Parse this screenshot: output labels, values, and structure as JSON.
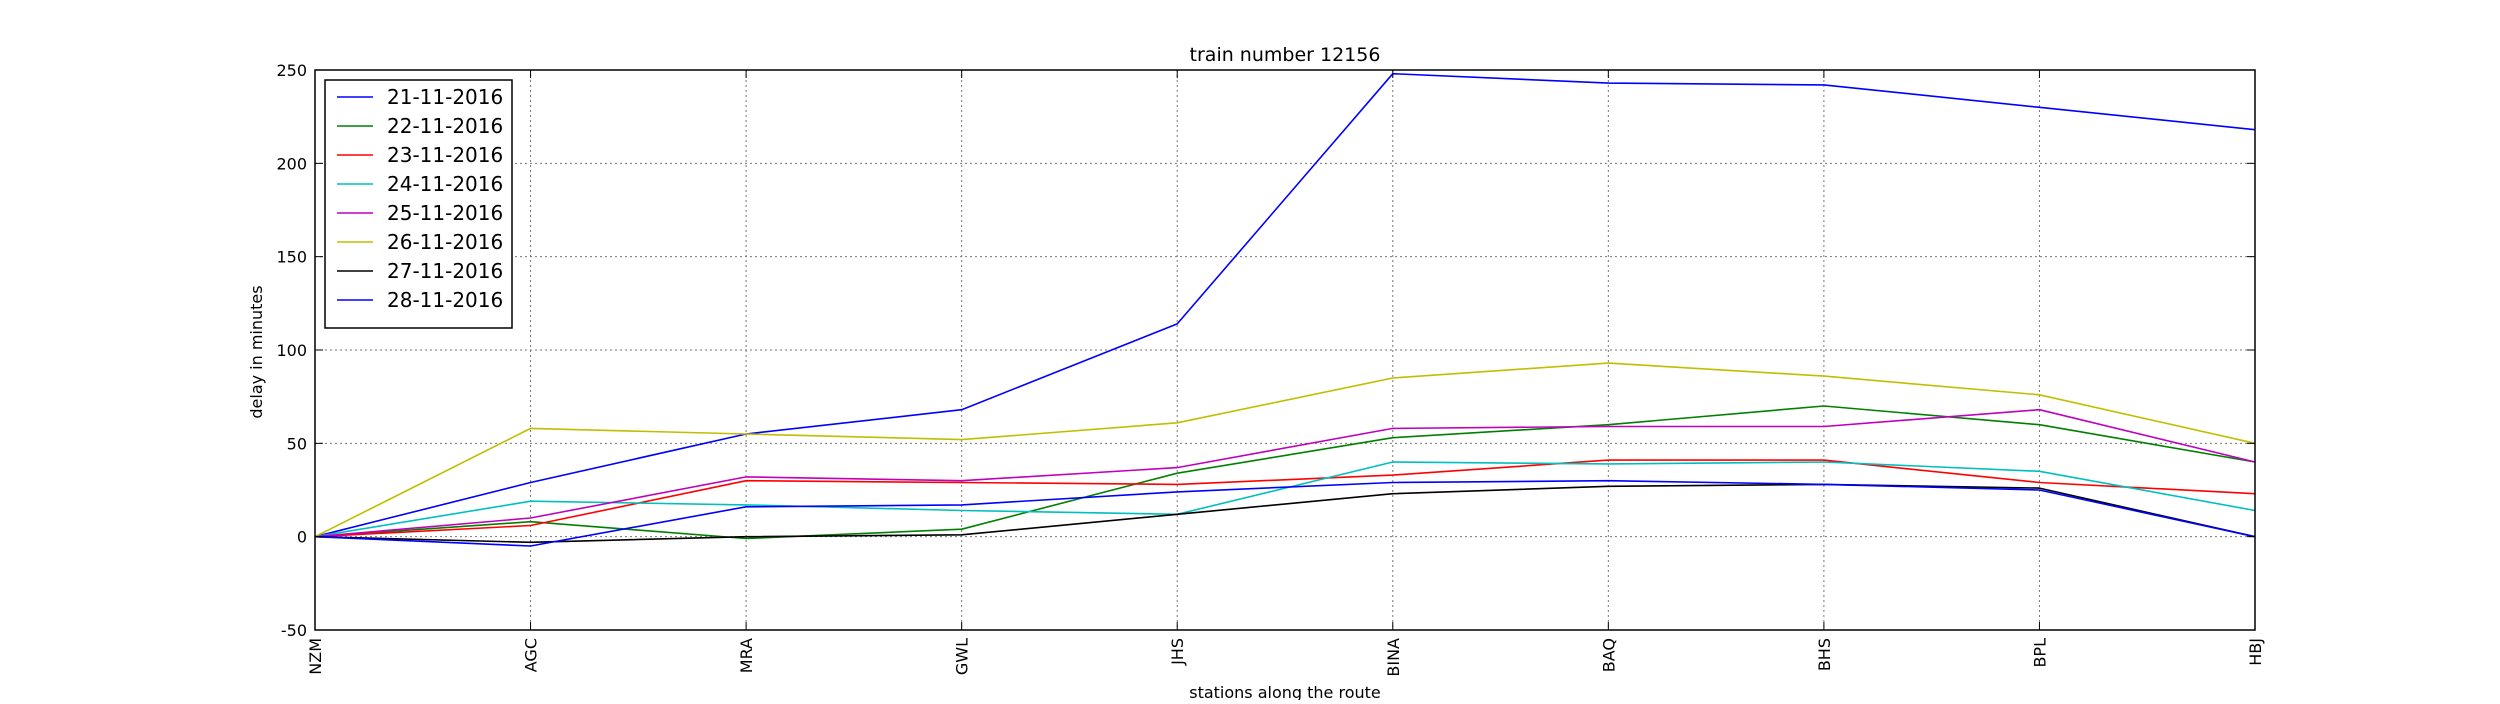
{
  "chart_data": {
    "type": "line",
    "title": "train number 12156",
    "xlabel": "stations along the route",
    "ylabel": "delay in minutes",
    "categories": [
      "NZM",
      "AGC",
      "MRA",
      "GWL",
      "JHS",
      "BINA",
      "BAQ",
      "BHS",
      "BPL",
      "HBJ"
    ],
    "ylim": [
      -50,
      250
    ],
    "yticks": [
      -50,
      0,
      50,
      100,
      150,
      200,
      250
    ],
    "grid": true,
    "legend_position": "top-left",
    "series": [
      {
        "name": "21-11-2016",
        "color": "#0000ff",
        "values": [
          0,
          29,
          55,
          68,
          114,
          248,
          243,
          242,
          230,
          218
        ]
      },
      {
        "name": "22-11-2016",
        "color": "#008000",
        "values": [
          0,
          8,
          -1,
          4,
          34,
          53,
          60,
          70,
          60,
          40
        ]
      },
      {
        "name": "23-11-2016",
        "color": "#ff0000",
        "values": [
          0,
          6,
          30,
          29,
          28,
          33,
          41,
          41,
          29,
          23
        ]
      },
      {
        "name": "24-11-2016",
        "color": "#00bfbf",
        "values": [
          0,
          19,
          17,
          14,
          12,
          40,
          39,
          40,
          35,
          14
        ]
      },
      {
        "name": "25-11-2016",
        "color": "#bf00bf",
        "values": [
          0,
          10,
          32,
          30,
          37,
          58,
          59,
          59,
          68,
          40
        ]
      },
      {
        "name": "26-11-2016",
        "color": "#bfbf00",
        "values": [
          0,
          58,
          55,
          52,
          61,
          85,
          93,
          86,
          76,
          50
        ]
      },
      {
        "name": "27-11-2016",
        "color": "#000000",
        "values": [
          0,
          -3,
          0,
          1,
          12,
          23,
          27,
          28,
          26,
          0
        ]
      },
      {
        "name": "28-11-2016",
        "color": "#0000ff",
        "values": [
          0,
          -5,
          16,
          17,
          24,
          29,
          30,
          28,
          25,
          0
        ]
      }
    ]
  }
}
